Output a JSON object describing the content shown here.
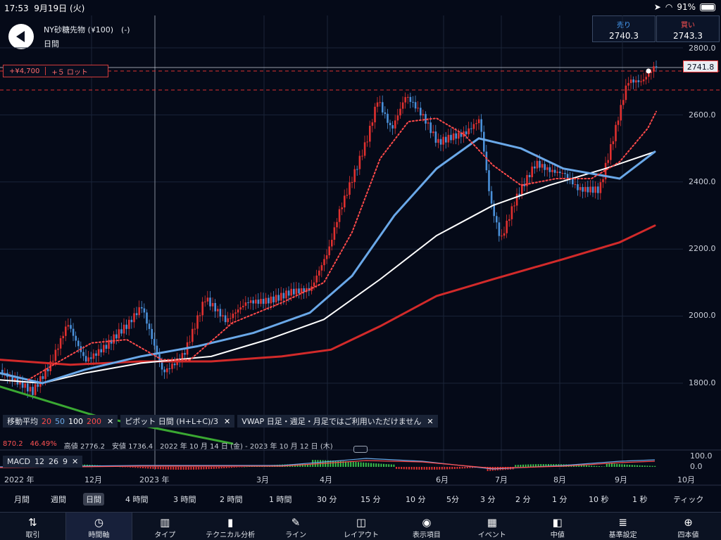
{
  "status": {
    "time": "17:53",
    "date": "9月19日 (火)",
    "battery": "91%"
  },
  "header": {
    "title": "NY砂糖先物 (¥100)　(-)",
    "subtitle": "日間"
  },
  "quotes": {
    "sell_label": "売り",
    "sell_value": "2740.3",
    "buy_label": "買い",
    "buy_value": "2743.3"
  },
  "position": {
    "pnl": "+¥4,700",
    "lots": "+５ ロット"
  },
  "price_axis": {
    "ticks": [
      "2800.0",
      "2600.0",
      "2400.0",
      "2200.0",
      "2000.0",
      "1800.0"
    ],
    "current": "2741.8"
  },
  "legend": {
    "ma_label": "移動平均",
    "ma_20": "20",
    "ma_50": "50",
    "ma_100": "100",
    "ma_200": "200",
    "pivot": "ピボット  日間  (H+L+C)/3",
    "vwap": "VWAP  日足・週足・月足ではご利用いただけません",
    "close_glyph": "✕"
  },
  "info": {
    "left_value": "870.2",
    "left_pct": "46.49%",
    "high": "高値 2776.2",
    "low": "安値 1736.4",
    "range": "2022 年 10 月 14 日 (金) - 2023 年 10 月 12 日 (木)"
  },
  "macd": {
    "label": "MACD",
    "p1": "12",
    "p2": "26",
    "p3": "9",
    "ticks": [
      "100.0",
      "0.0"
    ]
  },
  "date_axis": [
    "2022 年",
    "12月",
    "2023 年",
    "3月",
    "4月",
    "6月",
    "7月",
    "8月",
    "9月",
    "10月"
  ],
  "timeframes": [
    "月間",
    "週間",
    "日間",
    "4 時間",
    "3 時間",
    "2 時間",
    "1 時間",
    "30 分",
    "15 分",
    "10 分",
    "5分",
    "3 分",
    "2 分",
    "1 分",
    "10 秒",
    "1 秒",
    "ティック"
  ],
  "toolbar": [
    {
      "label": "取引",
      "icon": "⇅"
    },
    {
      "label": "時間軸",
      "icon": "◷"
    },
    {
      "label": "タイプ",
      "icon": "▥"
    },
    {
      "label": "テクニカル分析",
      "icon": "▮"
    },
    {
      "label": "ライン",
      "icon": "✎"
    },
    {
      "label": "レイアウト",
      "icon": "◫"
    },
    {
      "label": "表示項目",
      "icon": "◉"
    },
    {
      "label": "イベント",
      "icon": "▦"
    },
    {
      "label": "中値",
      "icon": "◧"
    },
    {
      "label": "基準設定",
      "icon": "≣"
    },
    {
      "label": "四本値",
      "icon": "⊕"
    }
  ],
  "colors": {
    "bg": "#050a18",
    "up": "#e0302f",
    "down": "#4a90d9",
    "ma20": "#ff4a4a",
    "ma50": "#6aa8e8",
    "ma100": "#ffffff",
    "ma200": "#d22a2a",
    "pivot": "#3aa832"
  }
}
